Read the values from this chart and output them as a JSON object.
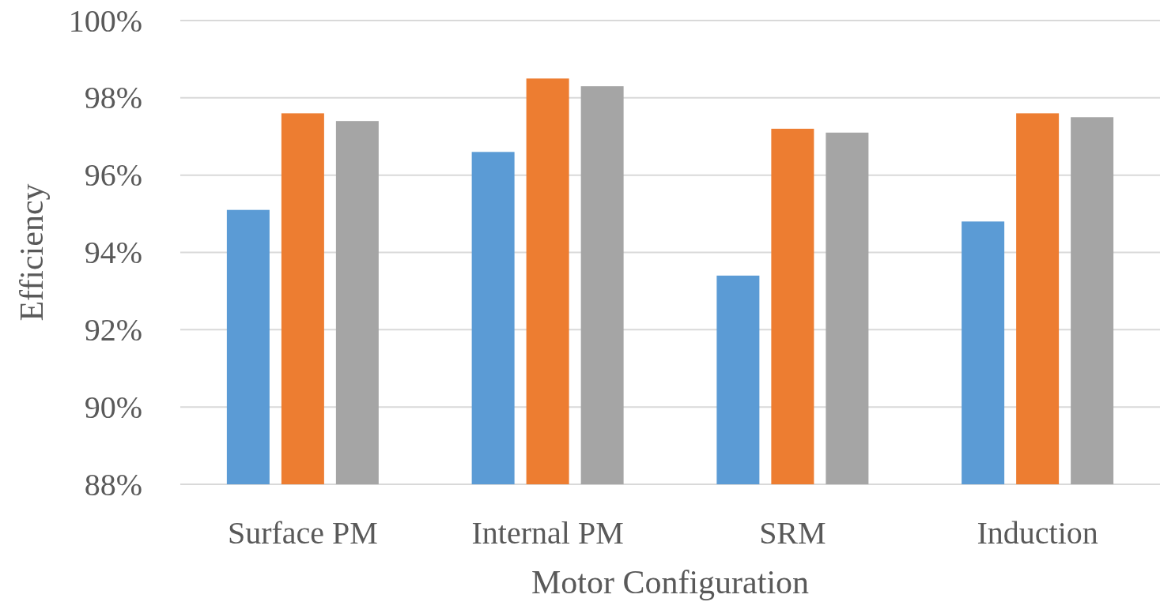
{
  "chart_data": {
    "type": "bar",
    "xlabel": "Motor Configuration",
    "ylabel": "Efficiency",
    "categories": [
      "Surface PM",
      "Internal PM",
      "SRM",
      "Induction"
    ],
    "series": [
      {
        "color": "#5b9bd5",
        "values": [
          95.1,
          96.6,
          93.4,
          94.8
        ]
      },
      {
        "color": "#ed7d31",
        "values": [
          97.6,
          98.5,
          97.2,
          97.6
        ]
      },
      {
        "color": "#a5a5a5",
        "values": [
          97.4,
          98.3,
          97.1,
          97.5
        ]
      }
    ],
    "ylim": [
      88,
      100
    ],
    "yticks": [
      {
        "value": 88,
        "label": "88%"
      },
      {
        "value": 90,
        "label": "90%"
      },
      {
        "value": 92,
        "label": "92%"
      },
      {
        "value": 94,
        "label": "94%"
      },
      {
        "value": 96,
        "label": "96%"
      },
      {
        "value": 98,
        "label": "98%"
      },
      {
        "value": 100,
        "label": "100%"
      }
    ],
    "grid": "y"
  }
}
